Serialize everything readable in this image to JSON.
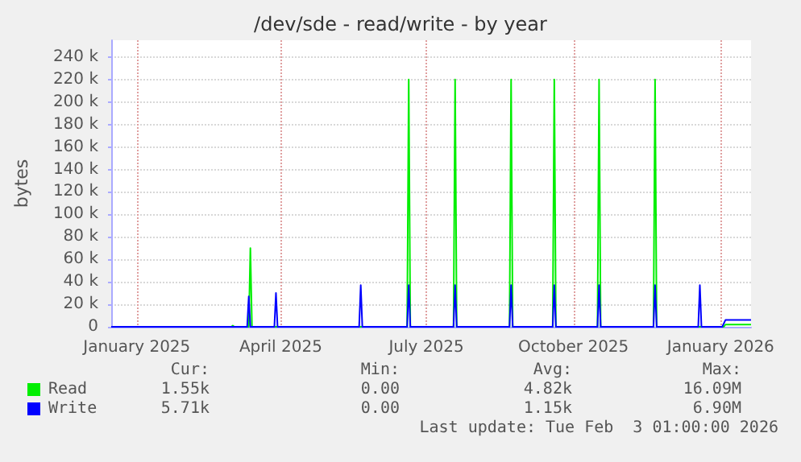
{
  "chart_data": {
    "type": "line",
    "title": "/dev/sde - read/write - by year",
    "ylabel": "bytes",
    "xlim": [
      "2024-12-16",
      "2026-01-20"
    ],
    "xticks": [
      {
        "value": "2025-01-01",
        "label": "January 2025"
      },
      {
        "value": "2025-04-01",
        "label": "April 2025"
      },
      {
        "value": "2025-07-01",
        "label": "July 2025"
      },
      {
        "value": "2025-10-01",
        "label": "October 2025"
      },
      {
        "value": "2026-01-01",
        "label": "January 2026"
      }
    ],
    "ylim": [
      0,
      255000
    ],
    "yticks": [
      0,
      {
        "value": 20000,
        "label": "20 k"
      },
      {
        "value": 40000,
        "label": "40 k"
      },
      {
        "value": 60000,
        "label": "60 k"
      },
      {
        "value": 80000,
        "label": "80 k"
      },
      {
        "value": 100000,
        "label": "100 k"
      },
      {
        "value": 120000,
        "label": "120 k"
      },
      {
        "value": 140000,
        "label": "140 k"
      },
      {
        "value": 160000,
        "label": "160 k"
      },
      {
        "value": 180000,
        "label": "180 k"
      },
      {
        "value": 200000,
        "label": "200 k"
      },
      {
        "value": 220000,
        "label": "220 k"
      },
      {
        "value": 240000,
        "label": "240 k"
      }
    ],
    "grid": true,
    "legend": "bottom left",
    "marker": "none",
    "line_style": "solid",
    "series": [
      {
        "name": "Read",
        "color": "#00ee00",
        "x": [
          "2024-12-16",
          "2025-03-01",
          "2025-03-02",
          "2025-03-03",
          "2025-03-12",
          "2025-03-13",
          "2025-03-14",
          "2025-06-19",
          "2025-06-20",
          "2025-06-21",
          "2025-07-18",
          "2025-07-19",
          "2025-07-20",
          "2025-08-22",
          "2025-08-23",
          "2025-08-24",
          "2025-09-18",
          "2025-09-19",
          "2025-09-20",
          "2025-10-16",
          "2025-10-17",
          "2025-10-18",
          "2025-11-20",
          "2025-11-21",
          "2025-11-22",
          "2026-01-03",
          "2026-01-04",
          "2026-01-20"
        ],
        "values": [
          0,
          0,
          1000,
          0,
          0,
          70000,
          0,
          0,
          220000,
          0,
          0,
          220000,
          0,
          0,
          220000,
          0,
          0,
          220000,
          0,
          0,
          220000,
          0,
          0,
          220000,
          0,
          0,
          2000,
          2000
        ]
      },
      {
        "name": "Write",
        "color": "#0000ff",
        "x": [
          "2024-12-16",
          "2025-03-11",
          "2025-03-12",
          "2025-03-13",
          "2025-03-28",
          "2025-03-29",
          "2025-03-30",
          "2025-05-20",
          "2025-05-21",
          "2025-05-22",
          "2025-06-19",
          "2025-06-20",
          "2025-06-21",
          "2025-07-18",
          "2025-07-19",
          "2025-07-20",
          "2025-08-22",
          "2025-08-23",
          "2025-08-24",
          "2025-09-18",
          "2025-09-19",
          "2025-09-20",
          "2025-10-16",
          "2025-10-17",
          "2025-10-18",
          "2025-11-20",
          "2025-11-21",
          "2025-11-22",
          "2025-12-18",
          "2025-12-19",
          "2025-12-20",
          "2026-01-02",
          "2026-01-04",
          "2026-01-20"
        ],
        "values": [
          0,
          0,
          27000,
          0,
          0,
          30000,
          0,
          0,
          37000,
          0,
          0,
          37000,
          0,
          0,
          37000,
          0,
          0,
          37000,
          0,
          0,
          37000,
          0,
          0,
          37000,
          0,
          0,
          37000,
          0,
          0,
          37000,
          0,
          0,
          6000,
          6000
        ]
      }
    ],
    "annotations": [
      "Cur:",
      "Min:",
      "Avg:",
      "Max:",
      "1.55k",
      "0.00",
      "4.82k",
      "16.09M",
      "5.71k",
      "0.00",
      "1.15k",
      "6.90M",
      "Last update: Tue Feb  3 01:00:00 2026"
    ]
  }
}
